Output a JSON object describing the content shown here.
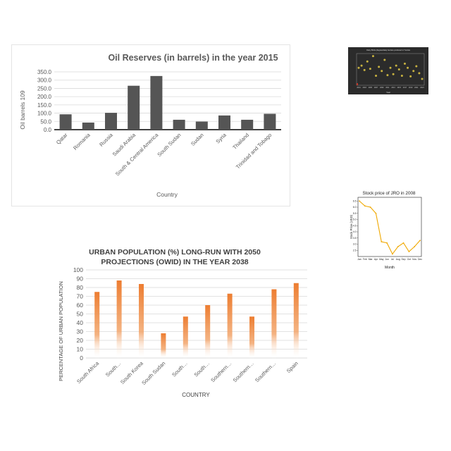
{
  "chart_data": [
    {
      "id": "oil",
      "type": "bar",
      "title": "Oil Reserves (in barrels) in the year 2015",
      "xlabel": "Country",
      "ylabel": "Oil barrels 109",
      "ylim": [
        0,
        350
      ],
      "yticks": [
        "0.0",
        "50.0",
        "100.0",
        "150.0",
        "200.0",
        "250.0",
        "300.0",
        "350.0"
      ],
      "grid": true,
      "categories": [
        "Qatar",
        "Romania",
        "Russia",
        "Saudi Arabia",
        "South & Central America",
        "South Sudan",
        "Sudan",
        "Syria",
        "Thailand",
        "Trinidad and Tobago"
      ],
      "values": [
        93,
        43,
        102,
        266,
        325,
        60,
        49,
        86,
        60,
        96
      ],
      "color": "#555555"
    },
    {
      "id": "urban",
      "type": "bar",
      "title": "URBAN POPULATION (%) LONG-RUN WITH 2050 PROJECTIONS (OWID) IN THE YEAR 2038",
      "xlabel": "COUNTRY",
      "ylabel": "PERCENTAGE OF URBAN POPULATION",
      "ylim": [
        0,
        100
      ],
      "yticks": [
        "0",
        "10",
        "20",
        "30",
        "40",
        "50",
        "60",
        "70",
        "80",
        "90",
        "100"
      ],
      "grid": true,
      "categories": [
        "South Africa",
        "South…",
        "South Korea",
        "South Sudan",
        "South…",
        "South…",
        "Southern…",
        "Southern…",
        "Southern…",
        "Spain"
      ],
      "values": [
        75,
        88,
        84,
        28,
        47,
        60,
        73,
        47,
        78,
        85
      ],
      "color": "#ed7d31"
    },
    {
      "id": "scatter",
      "type": "scatter",
      "title": "Dairy Birds (degree/data) hectare produced in Tunisia",
      "xlabel": "Year",
      "ylabel": "",
      "x": [
        "2001",
        "2002",
        "2003",
        "2004",
        "2005",
        "2006",
        "2007",
        "2008",
        "2009",
        "2010",
        "2011",
        "2012",
        "2013",
        "2014",
        "2015",
        "2016",
        "2017",
        "2018",
        "2019",
        "2020",
        "2021",
        "2022",
        "2023"
      ],
      "values": [
        0.55,
        0.62,
        0.48,
        0.75,
        0.52,
        0.92,
        0.3,
        0.58,
        0.45,
        0.8,
        0.32,
        0.55,
        0.35,
        0.62,
        0.5,
        0.3,
        0.68,
        0.55,
        0.28,
        0.45,
        0.6,
        0.38,
        0.2
      ],
      "ylim": [
        0,
        1
      ],
      "color": "#c8b240",
      "background": "#2b2b2b"
    },
    {
      "id": "stock",
      "type": "line",
      "title": "Stock price of JRO in 2008",
      "xlabel": "Month",
      "ylabel": "Stock Price (USD)",
      "categories": [
        "Jan",
        "Feb",
        "Mar",
        "Apr",
        "May",
        "Jun",
        "Jul",
        "Aug",
        "Sep",
        "Oct",
        "Nov",
        "Dec"
      ],
      "values": [
        6.5,
        6.1,
        6.0,
        5.5,
        3.2,
        3.1,
        2.2,
        2.8,
        3.1,
        2.4,
        2.8,
        3.3
      ],
      "ylim": [
        2.0,
        6.8
      ],
      "yticks": [
        "2.5",
        "3.0",
        "3.5",
        "4.0",
        "4.5",
        "5.0",
        "5.5",
        "6.0",
        "6.5"
      ],
      "color": "#f0a800"
    }
  ]
}
